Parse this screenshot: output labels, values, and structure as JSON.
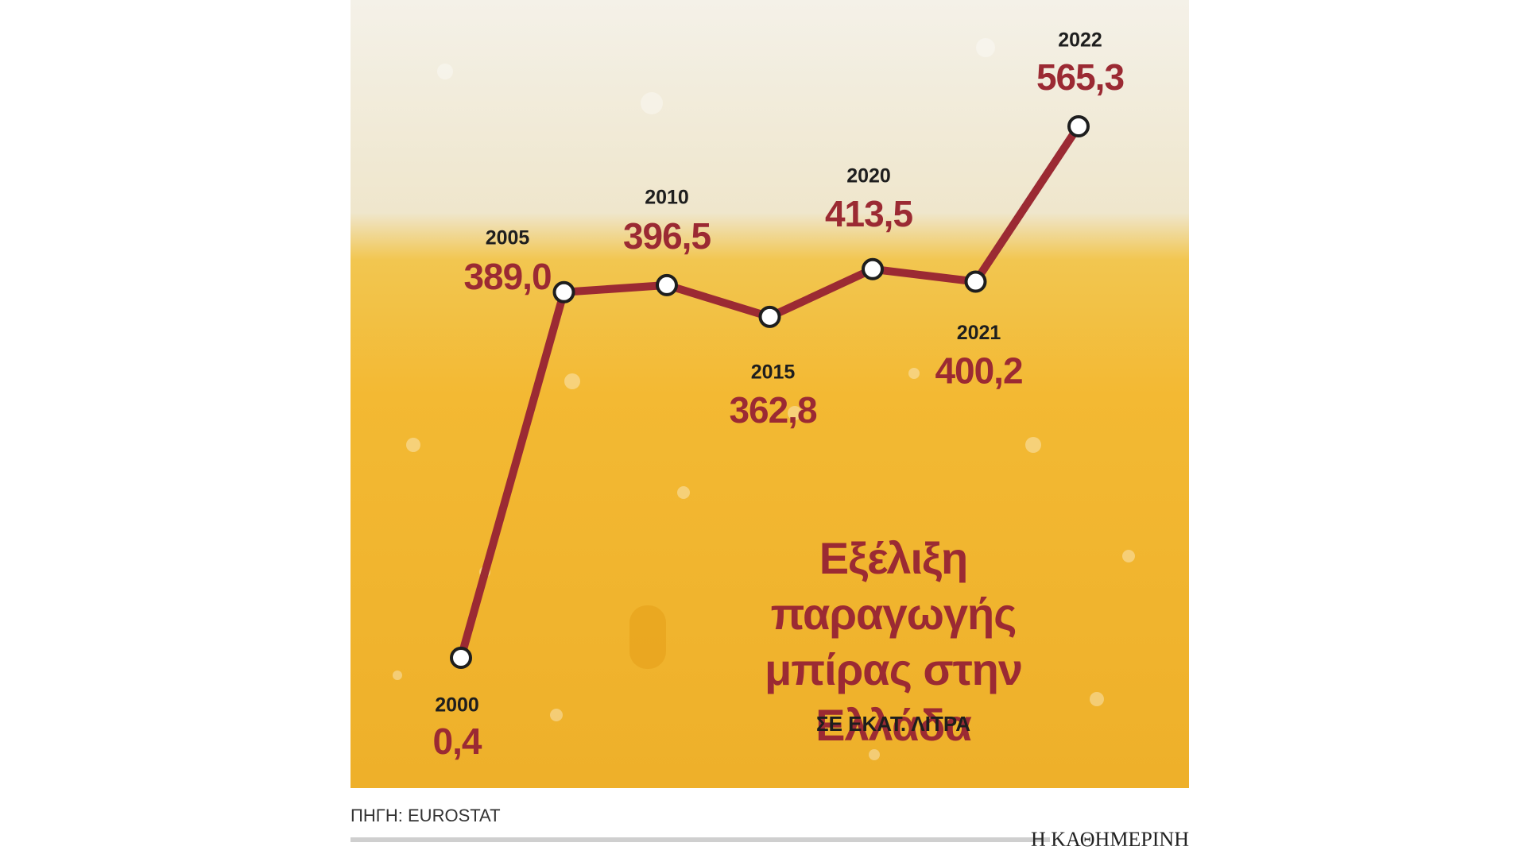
{
  "chart_data": {
    "type": "line",
    "title": "Εξέλιξη παραγωγής μπίρας στην Ελλάδα",
    "subtitle": "ΣΕ ΕΚΑΤ. ΛΙΤΡΑ",
    "categories": [
      "2000",
      "2005",
      "2010",
      "2015",
      "2020",
      "2021",
      "2022"
    ],
    "series": [
      {
        "color": "#9b2a33",
        "values": [
          0.4,
          389.0,
          396.5,
          362.8,
          413.5,
          400.2,
          565.3
        ],
        "value_labels": [
          "0,4",
          "389,0",
          "396,5",
          "362,8",
          "413,5",
          "400,2",
          "565,3"
        ]
      }
    ]
  },
  "source": "ΠΗΓΗ: EUROSTAT",
  "publisher": "Η ΚΑΘΗΜΕΡΙΝΗ"
}
